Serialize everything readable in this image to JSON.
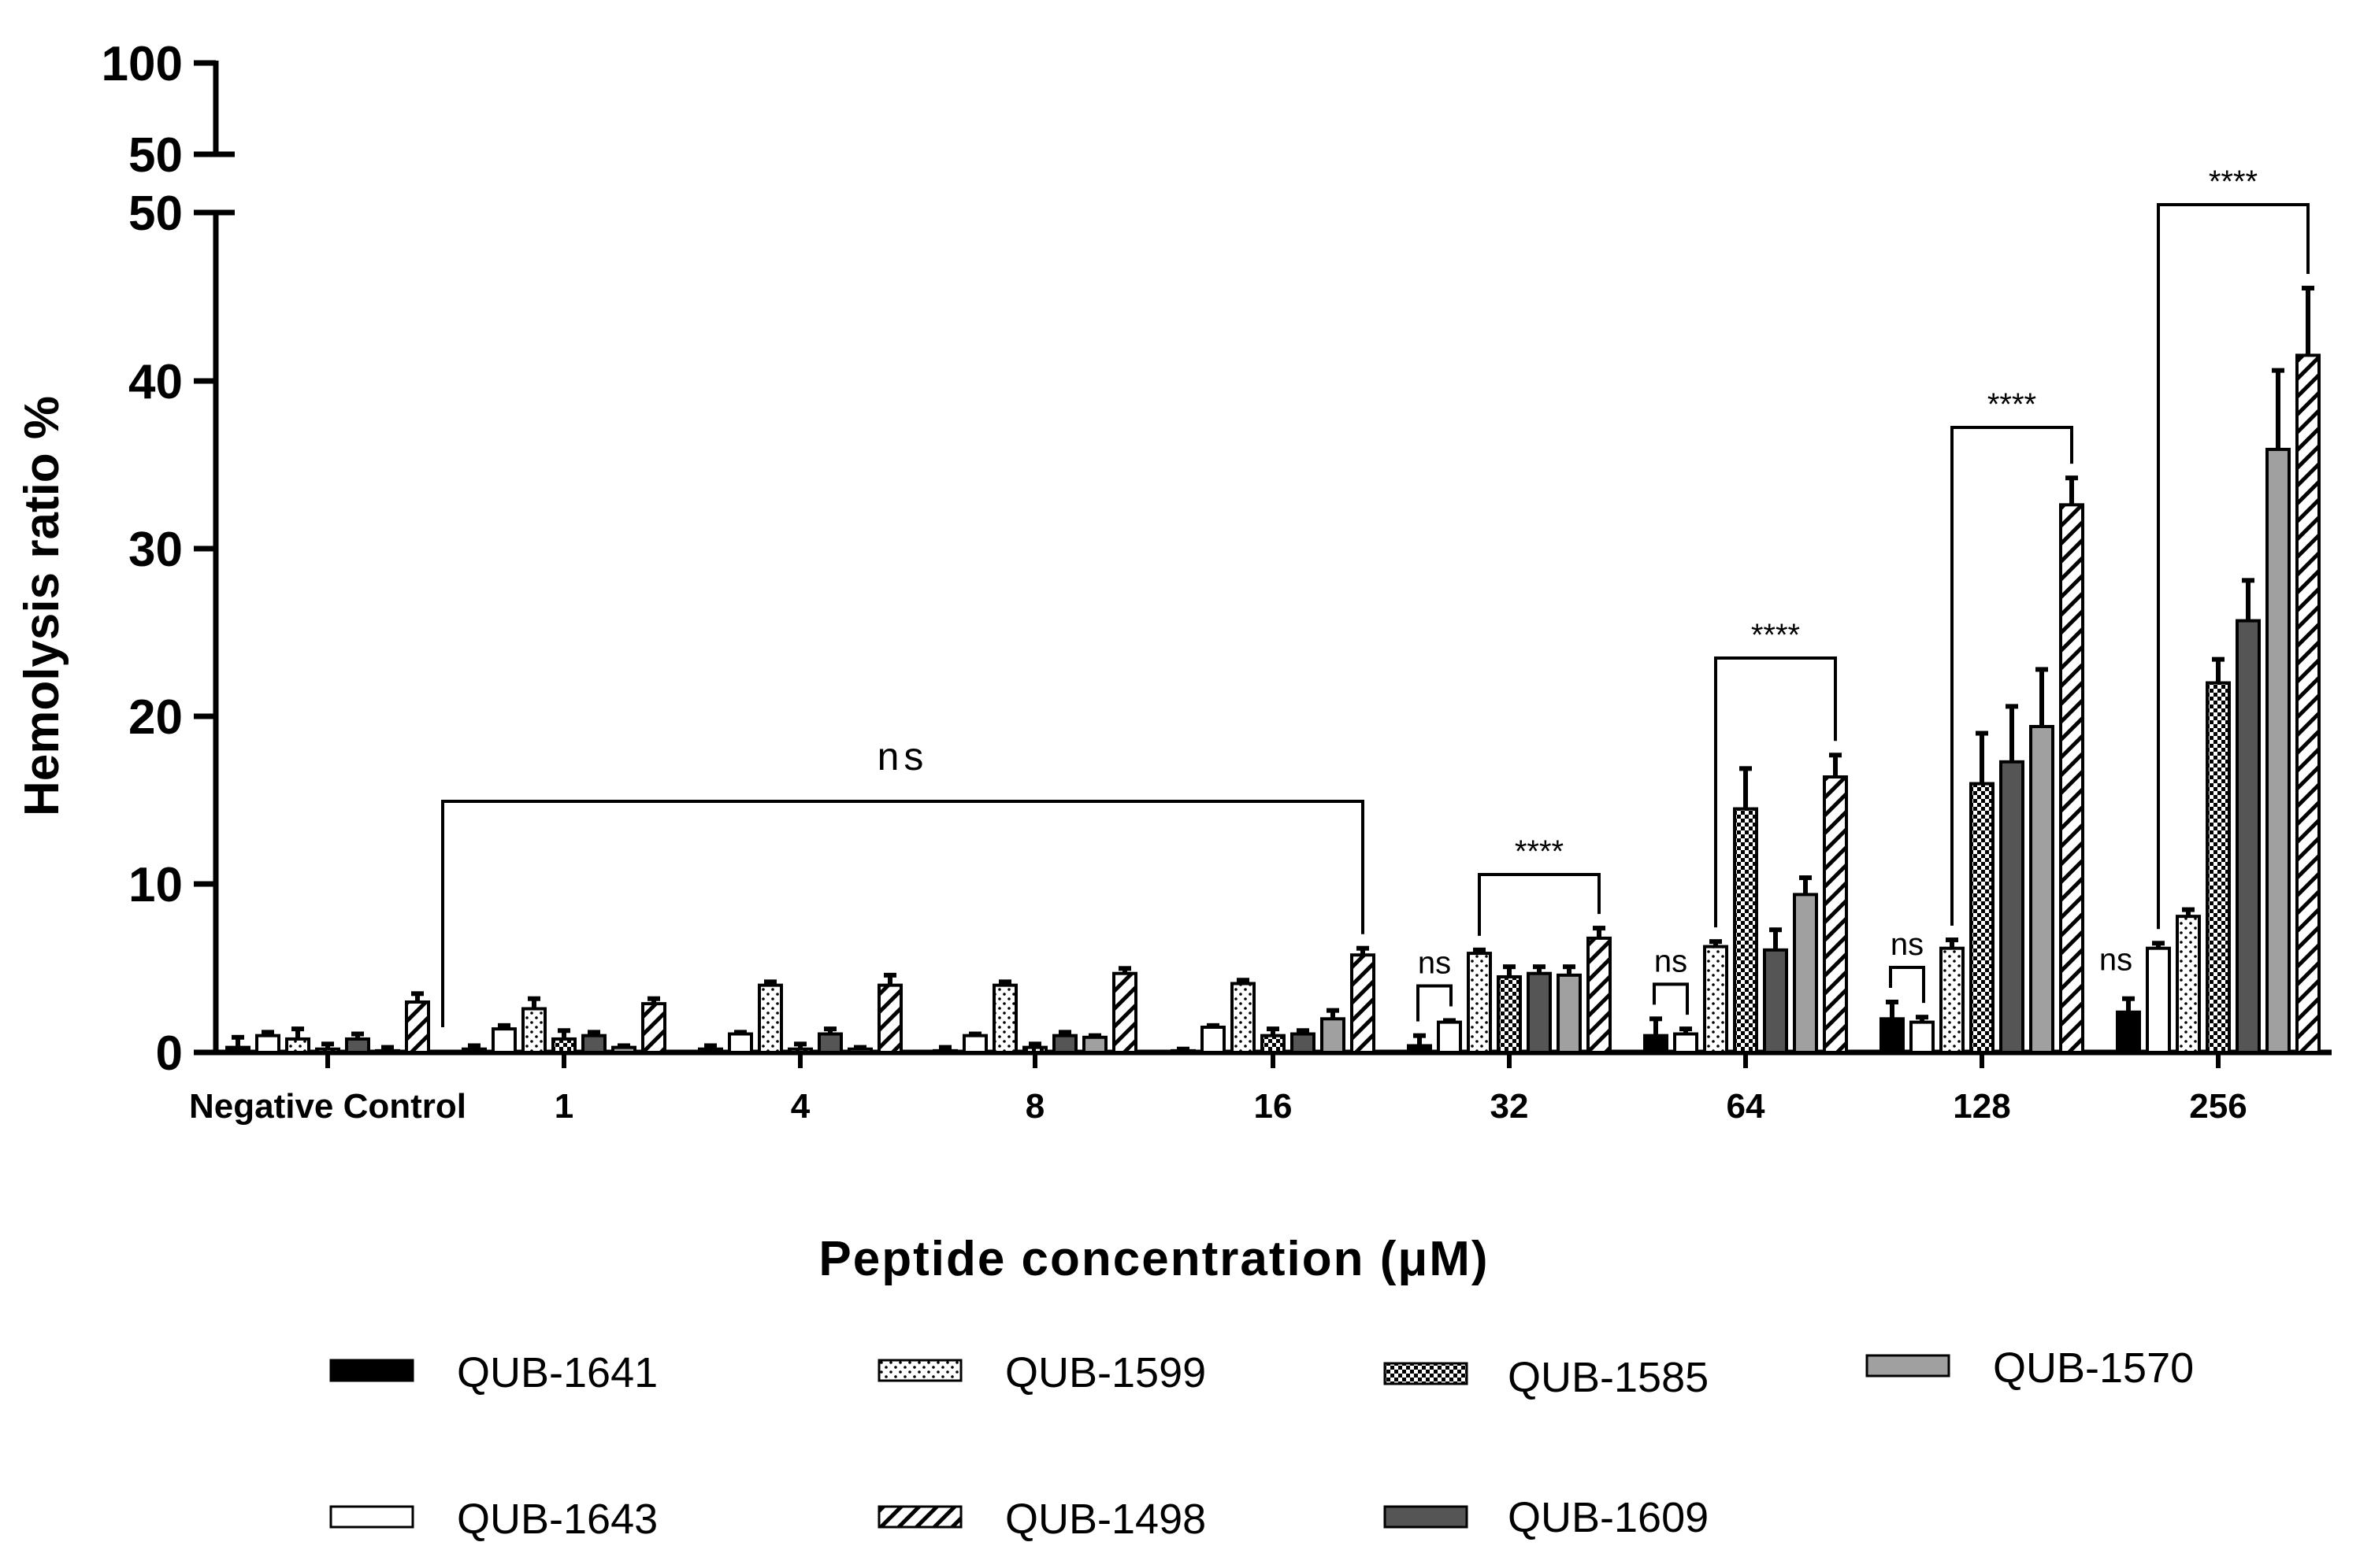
{
  "chart_data": {
    "type": "bar",
    "title": "",
    "xlabel": "Peptide concentration (μM)",
    "ylabel": "Hemolysis ratio %",
    "ylim": [
      0,
      50
    ],
    "ylim_upper": [
      50,
      100
    ],
    "y_ticks": [
      "0",
      "10",
      "20",
      "30",
      "40",
      "50"
    ],
    "y_ticks_upper": [
      "50",
      "100"
    ],
    "categories": [
      "Negative Control",
      "1",
      "4",
      "8",
      "16",
      "32",
      "64",
      "128",
      "256"
    ],
    "series": [
      {
        "name": "QUB-1641",
        "pattern": "solid-black",
        "values": [
          0.3,
          0.2,
          0.2,
          0.1,
          0.1,
          0.4,
          1.0,
          2.0,
          2.4
        ],
        "errors": [
          0.6,
          0.2,
          0.2,
          0.2,
          0.1,
          0.6,
          1.0,
          1.0,
          0.8
        ]
      },
      {
        "name": "QUB-1643",
        "pattern": "white",
        "values": [
          1.0,
          1.4,
          1.1,
          1.0,
          1.5,
          1.8,
          1.1,
          1.8,
          6.2
        ],
        "errors": [
          0.2,
          0.2,
          0.1,
          0.1,
          0.1,
          0.1,
          0.3,
          0.3,
          0.3
        ]
      },
      {
        "name": "QUB-1599",
        "pattern": "dots",
        "values": [
          0.8,
          2.6,
          4.0,
          4.0,
          4.1,
          5.9,
          6.3,
          6.2,
          8.1
        ],
        "errors": [
          0.6,
          0.6,
          0.2,
          0.2,
          0.2,
          0.2,
          0.3,
          0.5,
          0.4
        ]
      },
      {
        "name": "QUB-1585",
        "pattern": "checker",
        "values": [
          0.2,
          0.8,
          0.2,
          0.3,
          1.0,
          4.5,
          14.5,
          16.0,
          22.0
        ],
        "errors": [
          0.3,
          0.5,
          0.3,
          0.2,
          0.4,
          0.6,
          2.4,
          3.0,
          1.4
        ]
      },
      {
        "name": "QUB-1609",
        "pattern": "dark-gray",
        "values": [
          0.8,
          1.0,
          1.1,
          1.0,
          1.1,
          4.7,
          6.1,
          17.3,
          25.7
        ],
        "errors": [
          0.3,
          0.2,
          0.3,
          0.2,
          0.2,
          0.4,
          1.2,
          3.3,
          2.4
        ]
      },
      {
        "name": "QUB-1570",
        "pattern": "light-gray",
        "values": [
          0.1,
          0.3,
          0.2,
          0.9,
          2.0,
          4.6,
          9.4,
          19.4,
          35.9
        ],
        "errors": [
          0.2,
          0.1,
          0.1,
          0.1,
          0.5,
          0.5,
          1.0,
          3.4,
          4.7
        ]
      },
      {
        "name": "QUB-1498",
        "pattern": "hatch",
        "values": [
          3.0,
          2.9,
          4.0,
          4.7,
          5.8,
          6.8,
          16.4,
          32.6,
          41.5
        ],
        "errors": [
          0.5,
          0.3,
          0.6,
          0.3,
          0.4,
          0.6,
          1.3,
          1.6,
          4.0
        ]
      }
    ],
    "significance": [
      {
        "label": "ns",
        "from_category": "1",
        "to_category": "16",
        "to_series": "QUB-1498"
      },
      {
        "label": "ns",
        "category": "32",
        "from_series": "QUB-1641",
        "to_series": "QUB-1643"
      },
      {
        "label": "****",
        "category": "32",
        "from_series": "QUB-1599",
        "to_series": "QUB-1498"
      },
      {
        "label": "ns",
        "category": "64",
        "from_series": "QUB-1641",
        "to_series": "QUB-1643"
      },
      {
        "label": "****",
        "category": "64",
        "from_series": "QUB-1599",
        "to_series": "QUB-1498"
      },
      {
        "label": "ns",
        "category": "128",
        "from_series": "QUB-1641",
        "to_series": "QUB-1643"
      },
      {
        "label": "****",
        "category": "128",
        "from_series": "QUB-1599",
        "to_series": "QUB-1498"
      },
      {
        "label": "ns",
        "category": "256",
        "series": "QUB-1641"
      },
      {
        "label": "****",
        "category": "256",
        "from_series": "QUB-1643",
        "to_series": "QUB-1498"
      }
    ],
    "legend": [
      [
        "QUB-1641",
        "QUB-1599",
        "QUB-1585",
        "QUB-1570"
      ],
      [
        "QUB-1643",
        "QUB-1498",
        "QUB-1609"
      ]
    ],
    "legend_placement": "bottom",
    "grid": false
  }
}
